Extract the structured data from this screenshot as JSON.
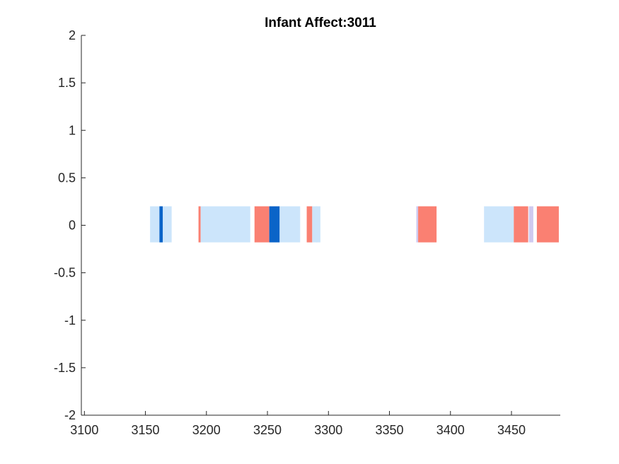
{
  "chart_data": {
    "type": "bar",
    "title": "Infant Affect:3011",
    "xlabel": "",
    "ylabel": "",
    "xlim": [
      3097.5,
      3490
    ],
    "ylim": [
      -2,
      2
    ],
    "xticks": [
      3100,
      3150,
      3200,
      3250,
      3300,
      3350,
      3400,
      3450
    ],
    "yticks": [
      2,
      1.5,
      1,
      0.5,
      0,
      -0.5,
      -1,
      -1.5,
      -2
    ],
    "band_y_range": [
      -0.18,
      0.2
    ],
    "grid": false,
    "legend": "none",
    "colors": {
      "light_blue": "#cce5fb",
      "dark_blue": "#0a64c8",
      "salmon": "#fa8072",
      "lavender": "#cfcaf0"
    },
    "segments": [
      {
        "x0": 3153.8,
        "x1": 3171.5,
        "color": "light_blue"
      },
      {
        "x0": 3161.5,
        "x1": 3164.2,
        "color": "dark_blue"
      },
      {
        "x0": 3193.5,
        "x1": 3195.3,
        "color": "salmon"
      },
      {
        "x0": 3195.3,
        "x1": 3235.9,
        "color": "light_blue"
      },
      {
        "x0": 3239.4,
        "x1": 3251.5,
        "color": "salmon"
      },
      {
        "x0": 3251.5,
        "x1": 3260.0,
        "color": "dark_blue"
      },
      {
        "x0": 3260.0,
        "x1": 3276.8,
        "color": "light_blue"
      },
      {
        "x0": 3282.2,
        "x1": 3286.7,
        "color": "salmon"
      },
      {
        "x0": 3286.7,
        "x1": 3290.7,
        "color": "light_blue"
      },
      {
        "x0": 3289.8,
        "x1": 3293.4,
        "color": "light_blue"
      },
      {
        "x0": 3372.0,
        "x1": 3373.5,
        "color": "lavender"
      },
      {
        "x0": 3373.5,
        "x1": 3388.6,
        "color": "salmon"
      },
      {
        "x0": 3427.5,
        "x1": 3451.9,
        "color": "light_blue"
      },
      {
        "x0": 3451.9,
        "x1": 3463.7,
        "color": "salmon"
      },
      {
        "x0": 3464.3,
        "x1": 3467.9,
        "color": "lavender"
      },
      {
        "x0": 3470.8,
        "x1": 3488.8,
        "color": "salmon"
      }
    ]
  }
}
